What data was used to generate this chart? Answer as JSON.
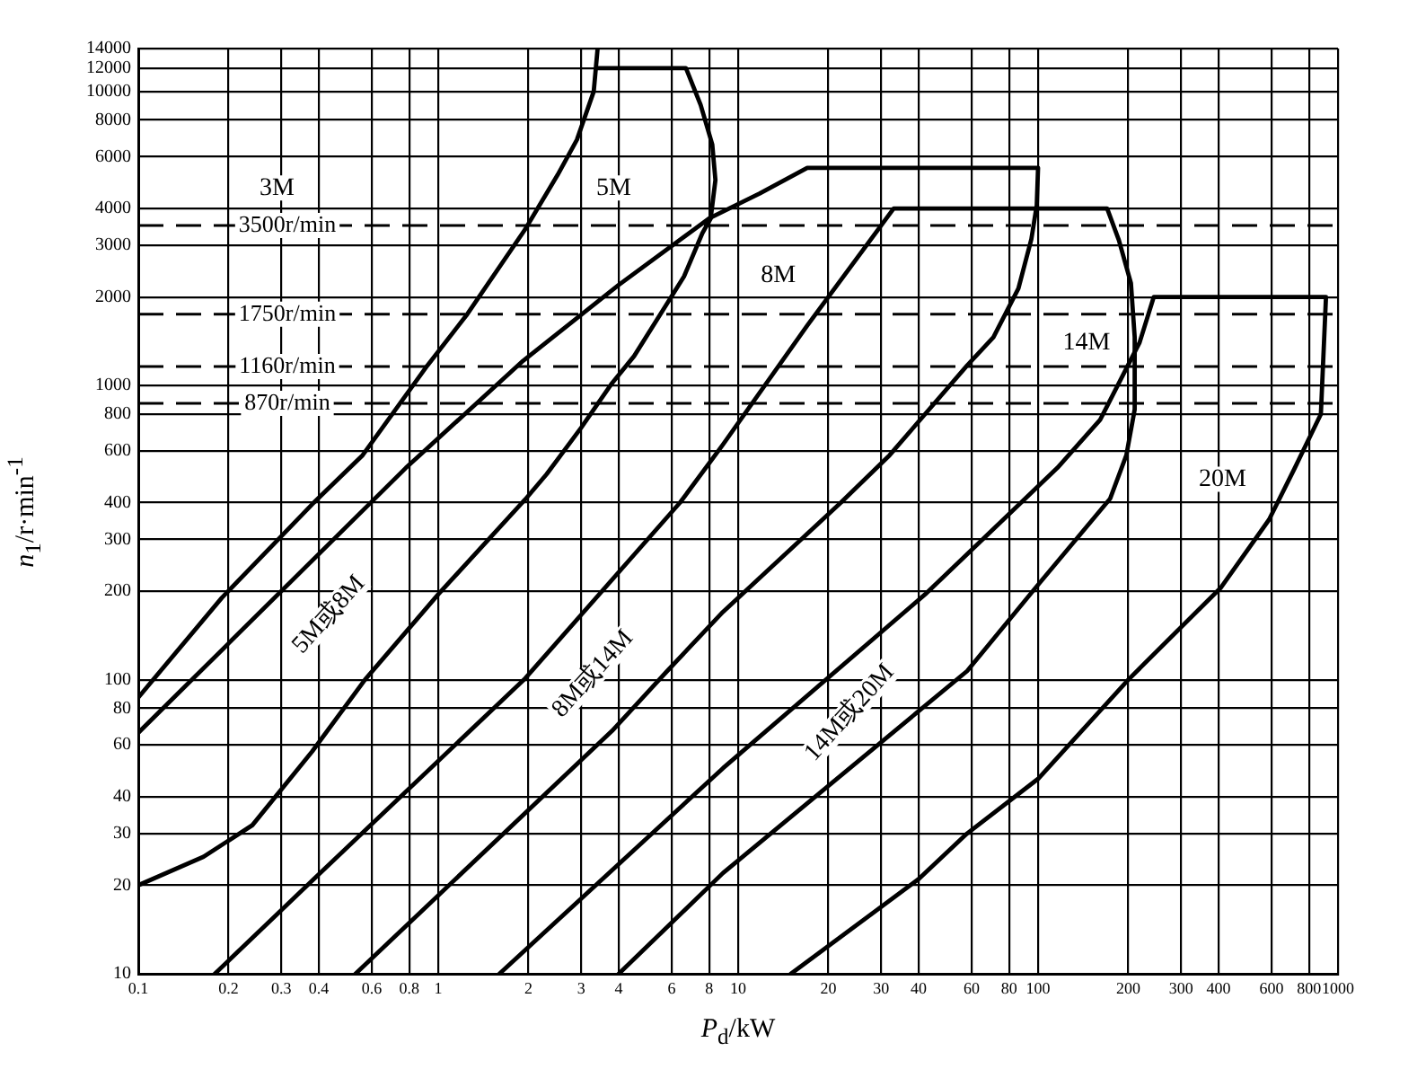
{
  "chart_data": {
    "type": "line",
    "xlabel": "P$_{d}$/kW",
    "ylabel": "n$_{1}$/r·min$^{-1}$",
    "log": "xy",
    "grid": true,
    "legend": false,
    "marker": "none",
    "line_style": "solid",
    "xlim": [
      0.1,
      1000
    ],
    "ylim": [
      10,
      14000
    ],
    "xticks": [
      0.1,
      0.2,
      0.3,
      0.4,
      0.6,
      0.8,
      1,
      2,
      3,
      4,
      6,
      8,
      10,
      20,
      30,
      40,
      60,
      80,
      100,
      200,
      300,
      400,
      600,
      800,
      1000
    ],
    "yticks": [
      10,
      20,
      30,
      40,
      60,
      80,
      100,
      200,
      300,
      400,
      600,
      800,
      1000,
      2000,
      3000,
      4000,
      6000,
      8000,
      10000,
      12000,
      14000
    ],
    "series": [
      {
        "color": "#000000",
        "x": [
          0.1,
          0.19,
          0.38,
          0.56,
          0.92,
          1.24,
          1.95,
          2.5,
          2.9,
          3.3,
          3.4
        ],
        "values": [
          87,
          190,
          395,
          580,
          1170,
          1730,
          3400,
          5200,
          6850,
          10000,
          14000
        ]
      },
      {
        "color": "#000000",
        "x": [
          3.4,
          6.7,
          7.5,
          8.2,
          8.4,
          8.1,
          7.6,
          6.6,
          5.7,
          4.5,
          3.8,
          3.0,
          2.3,
          1.95,
          1.0,
          0.57,
          0.38,
          0.24,
          0.165,
          0.1
        ],
        "values": [
          12000,
          12000,
          9000,
          6600,
          5000,
          3700,
          3300,
          2350,
          1850,
          1260,
          1020,
          720,
          500,
          410,
          195,
          100,
          57,
          32,
          25,
          20
        ]
      },
      {
        "color": "#000000",
        "x": [
          0.1,
          0.78,
          1.92,
          4,
          8,
          11.8,
          17,
          100,
          99,
          95,
          86,
          71,
          58,
          42,
          32,
          22,
          8.9,
          5.8,
          3.8,
          0.53
        ],
        "values": [
          66,
          525,
          1215,
          2200,
          3700,
          4500,
          5500,
          5500,
          4100,
          3150,
          2140,
          1460,
          1170,
          800,
          580,
          400,
          170,
          107,
          67,
          10
        ]
      },
      {
        "color": "#000000",
        "x": [
          0.18,
          0.385,
          1.95,
          6.4,
          8.9,
          17,
          33,
          170,
          186,
          204,
          210,
          210,
          197,
          174,
          98,
          58,
          8.9,
          4
        ],
        "values": [
          10,
          21,
          101,
          400,
          630,
          1600,
          4000,
          4000,
          3120,
          2230,
          1460,
          830,
          580,
          413,
          205,
          107,
          22,
          10
        ]
      },
      {
        "color": "#000000",
        "x": [
          1.6,
          8.9,
          42,
          116,
          161,
          218,
          243,
          912,
          877,
          718,
          589,
          406,
          200,
          100,
          58,
          40,
          15
        ],
        "values": [
          10,
          50,
          195,
          525,
          765,
          1400,
          2000,
          2000,
          800,
          525,
          350,
          205,
          100,
          46,
          30,
          21,
          10
        ]
      }
    ],
    "ref_lines": [
      {
        "axis": "y",
        "value": 3500,
        "label": "3500r/min",
        "line_style": "dashed",
        "color": "#000000"
      },
      {
        "axis": "y",
        "value": 1750,
        "label": "1750r/min",
        "line_style": "dashed",
        "color": "#000000"
      },
      {
        "axis": "y",
        "value": 1160,
        "label": "1160r/min",
        "line_style": "dashed",
        "color": "#000000"
      },
      {
        "axis": "y",
        "value": 870,
        "label": "870r/min",
        "line_style": "dashed",
        "color": "#000000"
      }
    ],
    "annotations": [
      {
        "text": "3M",
        "x": 0.29,
        "y": 4700
      },
      {
        "text": "5M",
        "x": 3.85,
        "y": 4700
      },
      {
        "text": "8M",
        "x": 13.6,
        "y": 2360
      },
      {
        "text": "14M",
        "x": 145,
        "y": 1400
      },
      {
        "text": "20M",
        "x": 412,
        "y": 480
      },
      "5M或8M",
      "8M或14M",
      "14M或20M"
    ]
  }
}
